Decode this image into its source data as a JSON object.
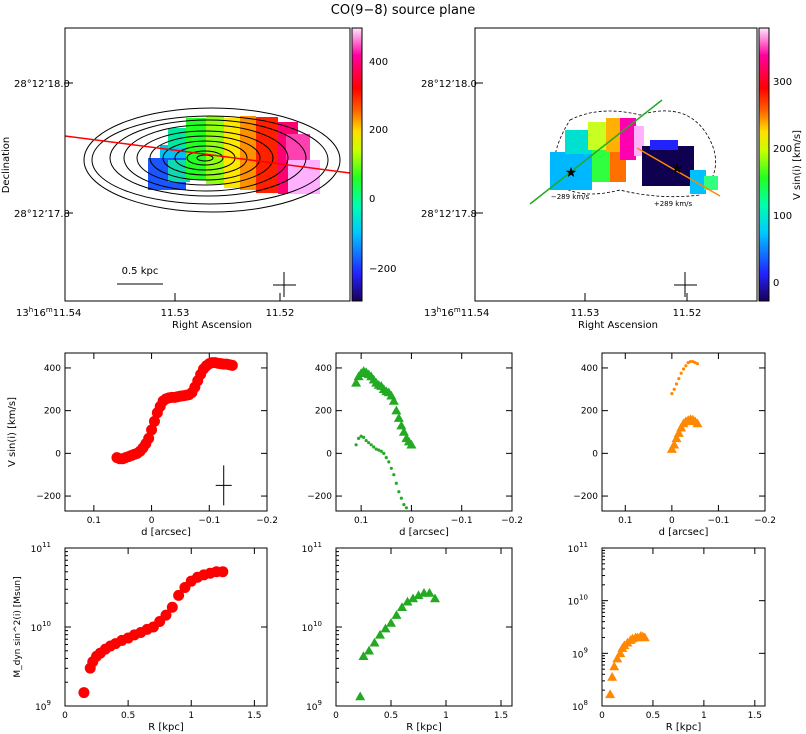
{
  "figure": {
    "title": "CO(9−8) source plane"
  },
  "chart_data": [
    {
      "id": "map_left",
      "type": "heatmap",
      "description_axes": {
        "xlabel": "Right Ascension",
        "ylabel": "Declination"
      },
      "x_ticks": [
        {
          "base": "13",
          "h": "h",
          "mid": "16",
          "m": "m",
          "tail": "11.54",
          "value": 11.54
        },
        {
          "text": "11.53",
          "value": 11.53
        },
        {
          "text": "11.52",
          "value": 11.52
        }
      ],
      "y_ticks": [
        {
          "text": "28°12’18.0",
          "value": 18.0
        },
        {
          "text": "28°12’17.8",
          "value": 17.8
        }
      ],
      "colorbar": {
        "ticks": [
          "400",
          "200",
          "0",
          "−200"
        ],
        "tick_values": [
          400,
          200,
          0,
          -200
        ],
        "range": [
          -300,
          500
        ],
        "label": ""
      },
      "scale_bar_label": "0.5 kpc",
      "pa_line_color": "#ff0000"
    },
    {
      "id": "map_right",
      "type": "heatmap",
      "description_axes": {
        "xlabel": "Right Ascension",
        "ylabel": ""
      },
      "x_ticks": [
        {
          "base": "13",
          "h": "h",
          "mid": "16",
          "m": "m",
          "tail": "11.54",
          "value": 11.54
        },
        {
          "text": "11.53",
          "value": 11.53
        },
        {
          "text": "11.52",
          "value": 11.52
        }
      ],
      "y_ticks": [
        {
          "text": "28°12’18.0",
          "value": 18.0
        },
        {
          "text": "28°12’17.8",
          "value": 17.8
        }
      ],
      "colorbar": {
        "ticks": [
          "300",
          "200",
          "100",
          "0"
        ],
        "tick_values": [
          300,
          200,
          100,
          0
        ],
        "range": [
          -30,
          360
        ],
        "label": "V sin(i) [km/s]"
      },
      "annotations": [
        "−289 km/s",
        "+289 km/s"
      ],
      "line_colors": {
        "green": "#22aa22",
        "orange": "#ff8800"
      }
    },
    {
      "id": "pv_red",
      "type": "scatter",
      "xlabel": "d [arcsec]",
      "ylabel": "V sin(i) [km/s]",
      "xlim": [
        0.15,
        -0.2
      ],
      "ylim": [
        -270,
        470
      ],
      "x_ticks": [
        0.1,
        0,
        -0.1,
        -0.2
      ],
      "x_tick_labels": [
        "0.1",
        "0",
        "−0.1",
        "−0.2"
      ],
      "y_ticks": [
        400,
        200,
        0,
        -200
      ],
      "y_tick_labels": [
        "400",
        "200",
        "0",
        "−200"
      ],
      "color": "#ff0000",
      "marker": "circle",
      "x": [
        0.06,
        0.055,
        0.05,
        0.045,
        0.04,
        0.035,
        0.03,
        0.025,
        0.02,
        0.015,
        0.01,
        0.005,
        0.0,
        -0.005,
        -0.01,
        -0.015,
        -0.02,
        -0.025,
        -0.03,
        -0.035,
        -0.04,
        -0.045,
        -0.05,
        -0.055,
        -0.06,
        -0.065,
        -0.07,
        -0.075,
        -0.08,
        -0.085,
        -0.09,
        -0.095,
        -0.1,
        -0.105,
        -0.11,
        -0.115,
        -0.12,
        -0.125,
        -0.13,
        -0.135,
        -0.14
      ],
      "y": [
        -20,
        -25,
        -25,
        -20,
        -15,
        -10,
        -5,
        0,
        10,
        25,
        45,
        70,
        110,
        150,
        190,
        220,
        245,
        255,
        260,
        262,
        262,
        265,
        268,
        270,
        272,
        275,
        285,
        310,
        340,
        370,
        395,
        410,
        420,
        425,
        425,
        422,
        420,
        418,
        418,
        415,
        412
      ]
    },
    {
      "id": "pv_green",
      "type": "scatter",
      "xlabel": "d [arcsec]",
      "ylabel": "",
      "xlim": [
        0.15,
        -0.2
      ],
      "ylim": [
        -270,
        470
      ],
      "x_ticks": [
        0.1,
        0,
        -0.1,
        -0.2
      ],
      "x_tick_labels": [
        "0.1",
        "0",
        "−0.1",
        "−0.2"
      ],
      "y_ticks": [
        400,
        200,
        0,
        -200
      ],
      "y_tick_labels": [
        "400",
        "200",
        "0",
        "−200"
      ],
      "color": "#22aa22",
      "series": [
        {
          "marker": "triangle",
          "x": [
            0.11,
            0.105,
            0.1,
            0.095,
            0.09,
            0.085,
            0.08,
            0.075,
            0.07,
            0.065,
            0.06,
            0.055,
            0.05,
            0.045,
            0.04,
            0.035,
            0.03,
            0.025,
            0.02,
            0.015,
            0.01,
            0.005,
            0.0
          ],
          "y": [
            330,
            360,
            375,
            385,
            380,
            370,
            360,
            345,
            330,
            320,
            315,
            300,
            290,
            285,
            270,
            245,
            200,
            165,
            130,
            100,
            70,
            55,
            40
          ]
        },
        {
          "marker": "dot",
          "x": [
            0.11,
            0.105,
            0.1,
            0.095,
            0.09,
            0.085,
            0.08,
            0.075,
            0.07,
            0.065,
            0.06,
            0.055,
            0.05,
            0.045,
            0.04,
            0.035,
            0.03,
            0.025,
            0.02,
            0.015,
            0.01
          ],
          "y": [
            40,
            70,
            80,
            75,
            60,
            50,
            40,
            30,
            20,
            15,
            10,
            0,
            -20,
            -40,
            -70,
            -100,
            -140,
            -180,
            -210,
            -240,
            -255
          ]
        }
      ]
    },
    {
      "id": "pv_orange",
      "type": "scatter",
      "xlabel": "d [arcsec]",
      "ylabel": "",
      "xlim": [
        0.15,
        -0.2
      ],
      "ylim": [
        -270,
        470
      ],
      "x_ticks": [
        0.1,
        0,
        -0.1,
        -0.2
      ],
      "x_tick_labels": [
        "0.1",
        "0",
        "−0.1",
        "−0.2"
      ],
      "y_ticks": [
        400,
        200,
        0,
        -200
      ],
      "y_tick_labels": [
        "400",
        "200",
        "0",
        "−200"
      ],
      "color": "#ff8800",
      "series": [
        {
          "marker": "triangle",
          "x": [
            0.0,
            -0.005,
            -0.01,
            -0.015,
            -0.02,
            -0.025,
            -0.03,
            -0.035,
            -0.04,
            -0.045,
            -0.05,
            -0.055
          ],
          "y": [
            20,
            40,
            70,
            95,
            120,
            140,
            150,
            155,
            160,
            158,
            150,
            140
          ]
        },
        {
          "marker": "dot",
          "x": [
            0.0,
            -0.005,
            -0.01,
            -0.015,
            -0.02,
            -0.025,
            -0.03,
            -0.035,
            -0.04,
            -0.045,
            -0.05,
            -0.055
          ],
          "y": [
            280,
            300,
            325,
            350,
            375,
            395,
            410,
            425,
            430,
            430,
            425,
            420
          ]
        }
      ]
    },
    {
      "id": "mass_red",
      "type": "scatter",
      "xlabel": "R [kpc]",
      "ylabel": "M_dyn sin^2(i) [Msun]",
      "xlim": [
        0,
        1.6
      ],
      "ylim_log10": [
        9,
        11
      ],
      "x_ticks": [
        0,
        0.5,
        1,
        1.5
      ],
      "x_tick_labels": [
        "0",
        "0.5",
        "1",
        "1.5"
      ],
      "y_tick_labels": [
        {
          "b": "10",
          "e": "11"
        },
        {
          "b": "10",
          "e": "10"
        },
        {
          "b": "10",
          "e": "9"
        }
      ],
      "color": "#ff0000",
      "marker": "circle",
      "x": [
        0.15,
        0.2,
        0.22,
        0.25,
        0.28,
        0.32,
        0.36,
        0.4,
        0.45,
        0.5,
        0.55,
        0.6,
        0.65,
        0.7,
        0.75,
        0.8,
        0.85,
        0.9,
        0.95,
        1.0,
        1.05,
        1.1,
        1.15,
        1.2,
        1.25
      ],
      "log10_y": [
        9.17,
        9.48,
        9.56,
        9.63,
        9.67,
        9.72,
        9.76,
        9.79,
        9.83,
        9.86,
        9.9,
        9.93,
        9.97,
        10.0,
        10.07,
        10.15,
        10.25,
        10.4,
        10.5,
        10.58,
        10.63,
        10.66,
        10.68,
        10.7,
        10.7
      ]
    },
    {
      "id": "mass_green",
      "type": "scatter",
      "xlabel": "R [kpc]",
      "ylabel": "",
      "xlim": [
        0,
        1.6
      ],
      "ylim_log10": [
        9,
        11
      ],
      "x_ticks": [
        0,
        0.5,
        1,
        1.5
      ],
      "x_tick_labels": [
        "0",
        "0.5",
        "1",
        "1.5"
      ],
      "y_tick_labels": [
        {
          "b": "10",
          "e": "11"
        },
        {
          "b": "10",
          "e": "10"
        },
        {
          "b": "10",
          "e": "9"
        }
      ],
      "color": "#22aa22",
      "marker": "triangle",
      "x": [
        0.22,
        0.25,
        0.3,
        0.35,
        0.4,
        0.45,
        0.5,
        0.55,
        0.6,
        0.65,
        0.7,
        0.75,
        0.8,
        0.85,
        0.9
      ],
      "log10_y": [
        9.12,
        9.63,
        9.7,
        9.8,
        9.9,
        9.98,
        10.05,
        10.15,
        10.25,
        10.32,
        10.36,
        10.4,
        10.43,
        10.43,
        10.36
      ]
    },
    {
      "id": "mass_orange",
      "type": "scatter",
      "xlabel": "R [kpc]",
      "ylabel": "",
      "xlim": [
        0,
        1.6
      ],
      "ylim_log10": [
        8,
        11
      ],
      "x_ticks": [
        0,
        0.5,
        1,
        1.5
      ],
      "x_tick_labels": [
        "0",
        "0.5",
        "1",
        "1.5"
      ],
      "y_tick_labels": [
        {
          "b": "10",
          "e": "11"
        },
        {
          "b": "10",
          "e": "10"
        },
        {
          "b": "10",
          "e": "9"
        },
        {
          "b": "10",
          "e": "8"
        }
      ],
      "color": "#ff8800",
      "marker": "triangle",
      "x": [
        0.08,
        0.1,
        0.12,
        0.15,
        0.18,
        0.2,
        0.22,
        0.25,
        0.28,
        0.3,
        0.33,
        0.35,
        0.38,
        0.4,
        0.42
      ],
      "log10_y": [
        8.22,
        8.55,
        8.75,
        8.9,
        9.0,
        9.1,
        9.15,
        9.2,
        9.25,
        9.28,
        9.3,
        9.3,
        9.33,
        9.32,
        9.3
      ]
    }
  ]
}
